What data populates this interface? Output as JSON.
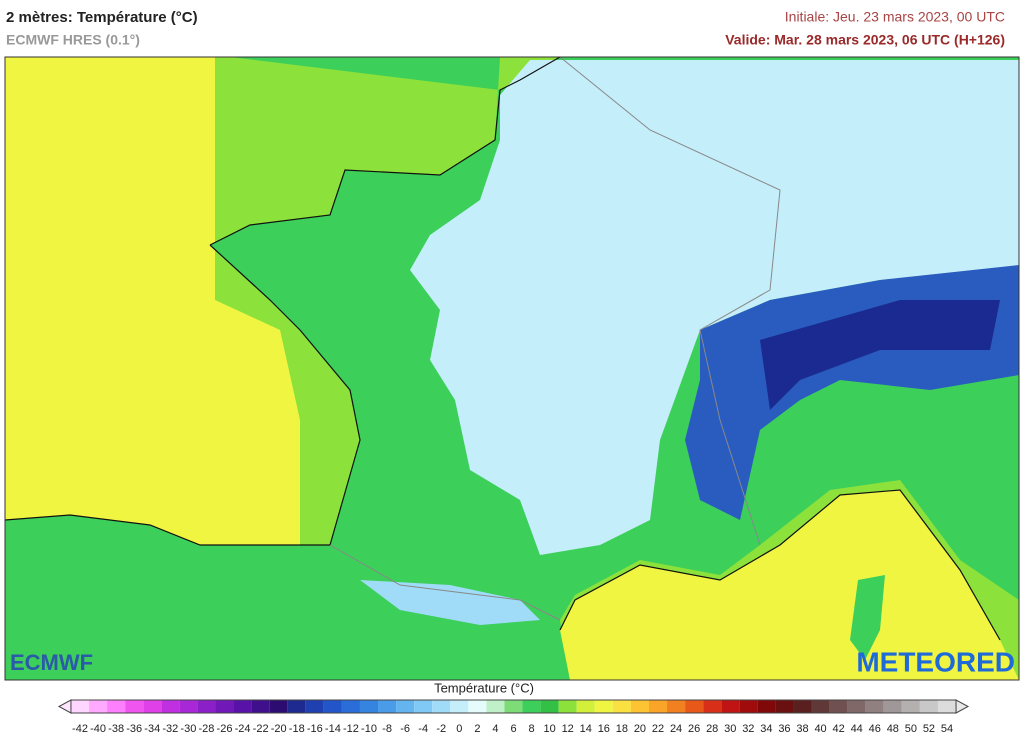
{
  "header": {
    "title": "2 mètres: Température (°C)",
    "subtitle": "ECMWF HRES (0.1°)",
    "initial": "Initiale: Jeu. 23 mars 2023, 00 UTC",
    "valid": "Valide: Mar. 28 mars 2023, 06 UTC (H+126)"
  },
  "logos": {
    "left": "ECMWF",
    "right": "METEORED"
  },
  "legend": {
    "title": "Température (°C)",
    "ticks": [
      -42,
      -40,
      -38,
      -36,
      -34,
      -32,
      -30,
      -28,
      -26,
      -24,
      -22,
      -20,
      -18,
      -16,
      -14,
      -12,
      -10,
      -8,
      -6,
      -4,
      -2,
      0,
      2,
      4,
      6,
      8,
      10,
      12,
      14,
      16,
      18,
      20,
      22,
      24,
      26,
      28,
      30,
      32,
      34,
      36,
      38,
      40,
      42,
      44,
      46,
      48,
      50,
      52,
      54
    ],
    "colors": [
      "#ffd6ff",
      "#ffaaff",
      "#ff80ff",
      "#f055f0",
      "#e040e8",
      "#c030e0",
      "#a828d8",
      "#8c20c8",
      "#7018b8",
      "#5812a8",
      "#40108c",
      "#2c0c70",
      "#1e2a90",
      "#1f40b0",
      "#2256c8",
      "#2a6cd8",
      "#3484e0",
      "#4a9ce8",
      "#64b4f0",
      "#80c8f5",
      "#a0dcf8",
      "#c4eefa",
      "#e6fcfc",
      "#bff0c8",
      "#7edc78",
      "#3ccf5c",
      "#34c044",
      "#8ce23a",
      "#d2f03a",
      "#f0f542",
      "#fae040",
      "#fcc432",
      "#faa428",
      "#f08020",
      "#e85818",
      "#d83018",
      "#c01414",
      "#a00c0c",
      "#800808",
      "#6a1010",
      "#5a2020",
      "#603838",
      "#705050",
      "#806868",
      "#908080",
      "#a09898",
      "#b4b0b0",
      "#c8c8c8",
      "#dcdcdc"
    ],
    "under_color": "#ffe6ff",
    "over_color": "#e8e8e8"
  }
}
